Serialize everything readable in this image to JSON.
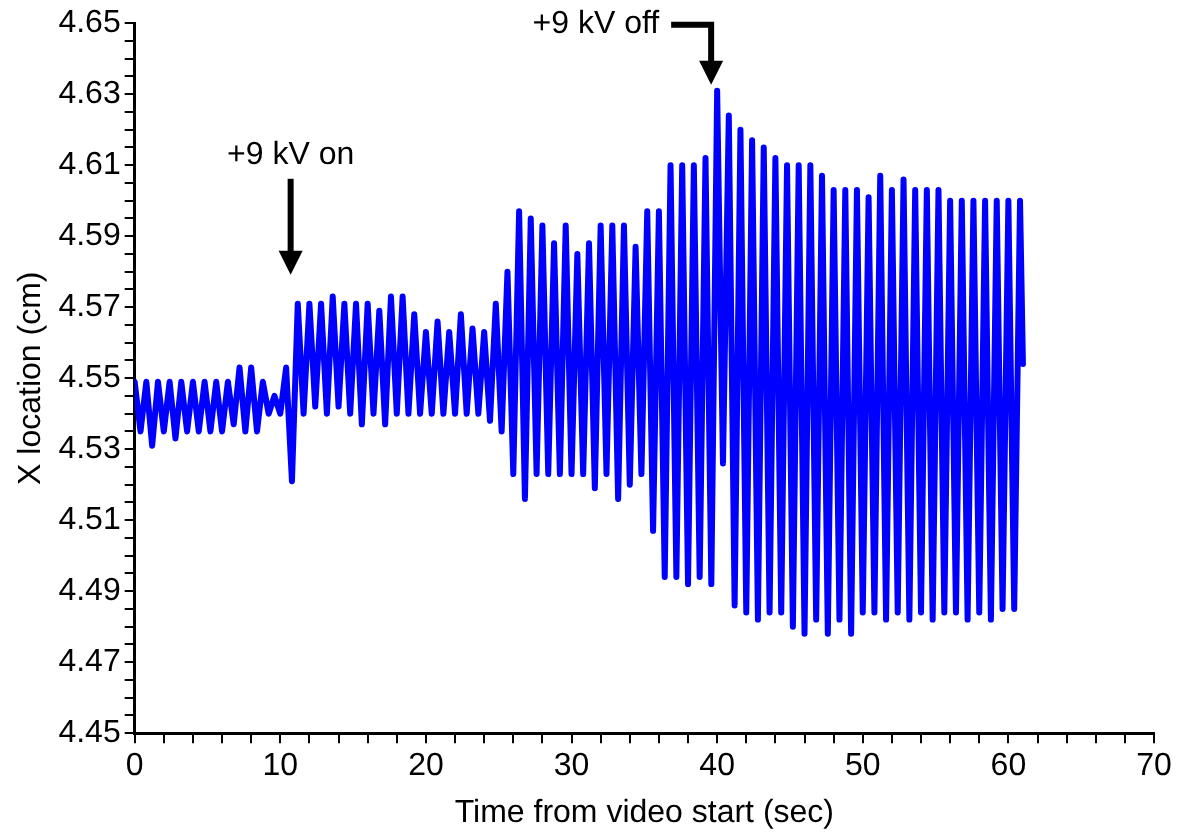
{
  "chart_data": {
    "type": "line",
    "xlabel": "Time from video start (sec)",
    "ylabel": "X location (cm)",
    "xlim": [
      0,
      70
    ],
    "ylim": [
      4.45,
      4.65
    ],
    "xticks": [
      0,
      {
        "value": 2,
        "label": null
      },
      {
        "value": 4,
        "label": null
      },
      {
        "value": 6,
        "label": null
      },
      {
        "value": 8,
        "label": null
      },
      10,
      {
        "value": 12,
        "label": null
      },
      {
        "value": 14,
        "label": null
      },
      {
        "value": 16,
        "label": null
      },
      {
        "value": 18,
        "label": null
      },
      20,
      {
        "value": 22,
        "label": null
      },
      {
        "value": 24,
        "label": null
      },
      {
        "value": 26,
        "label": null
      },
      {
        "value": 28,
        "label": null
      },
      30,
      {
        "value": 32,
        "label": null
      },
      {
        "value": 34,
        "label": null
      },
      {
        "value": 36,
        "label": null
      },
      {
        "value": 38,
        "label": null
      },
      40,
      {
        "value": 42,
        "label": null
      },
      {
        "value": 44,
        "label": null
      },
      {
        "value": 46,
        "label": null
      },
      {
        "value": 48,
        "label": null
      },
      50,
      {
        "value": 52,
        "label": null
      },
      {
        "value": 54,
        "label": null
      },
      {
        "value": 56,
        "label": null
      },
      {
        "value": 58,
        "label": null
      },
      60,
      {
        "value": 62,
        "label": null
      },
      {
        "value": 64,
        "label": null
      },
      {
        "value": 66,
        "label": null
      },
      {
        "value": 68,
        "label": null
      },
      70
    ],
    "yticks": [
      4.45,
      {
        "value": 4.455,
        "label": null
      },
      {
        "value": 4.46,
        "label": null
      },
      {
        "value": 4.465,
        "label": null
      },
      4.47,
      {
        "value": 4.475,
        "label": null
      },
      {
        "value": 4.48,
        "label": null
      },
      {
        "value": 4.485,
        "label": null
      },
      4.49,
      {
        "value": 4.495,
        "label": null
      },
      {
        "value": 4.5,
        "label": null
      },
      {
        "value": 4.505,
        "label": null
      },
      4.51,
      {
        "value": 4.515,
        "label": null
      },
      {
        "value": 4.52,
        "label": null
      },
      {
        "value": 4.525,
        "label": null
      },
      4.53,
      {
        "value": 4.535,
        "label": null
      },
      {
        "value": 4.54,
        "label": null
      },
      {
        "value": 4.545,
        "label": null
      },
      4.55,
      {
        "value": 4.555,
        "label": null
      },
      {
        "value": 4.56,
        "label": null
      },
      {
        "value": 4.565,
        "label": null
      },
      4.57,
      {
        "value": 4.575,
        "label": null
      },
      {
        "value": 4.58,
        "label": null
      },
      {
        "value": 4.585,
        "label": null
      },
      4.59,
      {
        "value": 4.595,
        "label": null
      },
      {
        "value": 4.6,
        "label": null
      },
      {
        "value": 4.605,
        "label": null
      },
      4.61,
      {
        "value": 4.615,
        "label": null
      },
      {
        "value": 4.62,
        "label": null
      },
      {
        "value": 4.625,
        "label": null
      },
      4.63,
      {
        "value": 4.635,
        "label": null
      },
      {
        "value": 4.64,
        "label": null
      },
      {
        "value": 4.645,
        "label": null
      },
      4.65
    ],
    "marker": "none",
    "annotations": [
      "+9 kV on",
      {
        "text": "+9 kV off",
        "x": 40,
        "y": 4.631
      }
    ],
    "x": [
      0,
      0.4,
      0.8,
      1.2,
      1.6,
      2,
      2.4,
      2.8,
      3.2,
      3.6,
      4,
      4.4,
      4.8,
      5.2,
      5.6,
      6,
      6.4,
      6.8,
      7.2,
      7.6,
      8,
      8.4,
      8.8,
      9.2,
      9.6,
      10,
      10.4,
      10.8,
      11.2,
      11.6,
      12,
      12.4,
      12.8,
      13.2,
      13.6,
      14,
      14.4,
      14.8,
      15.2,
      15.6,
      16,
      16.4,
      16.8,
      17.2,
      17.6,
      18,
      18.4,
      18.8,
      19.2,
      19.6,
      20,
      20.4,
      20.8,
      21.2,
      21.6,
      22,
      22.4,
      22.8,
      23.2,
      23.6,
      24,
      24.4,
      24.8,
      25.2,
      25.6,
      26,
      26.4,
      26.8,
      27.2,
      27.6,
      28,
      28.4,
      28.8,
      29.2,
      29.6,
      30,
      30.4,
      30.8,
      31.2,
      31.6,
      32,
      32.4,
      32.8,
      33.2,
      33.6,
      34,
      34.4,
      34.8,
      35.2,
      35.6,
      36,
      36.4,
      36.8,
      37.2,
      37.6,
      38,
      38.4,
      38.8,
      39.2,
      39.6,
      40,
      40.4,
      40.8,
      41.2,
      41.6,
      42,
      42.4,
      42.8,
      43.2,
      43.6,
      44,
      44.4,
      44.8,
      45.2,
      45.6,
      46,
      46.4,
      46.8,
      47.2,
      47.6,
      48,
      48.4,
      48.8,
      49.2,
      49.6,
      50,
      50.4,
      50.8,
      51.2,
      51.6,
      52,
      52.4,
      52.8,
      53.2,
      53.6,
      54,
      54.4,
      54.8,
      55.2,
      55.6,
      56,
      56.4,
      56.8,
      57.2,
      57.6,
      58,
      58.4,
      58.8,
      59.2,
      59.6,
      60,
      60.4,
      60.8,
      61
    ],
    "series": [
      {
        "color": "#0000ff",
        "values": [
          4.549,
          4.535,
          4.549,
          4.531,
          4.549,
          4.535,
          4.549,
          4.533,
          4.549,
          4.535,
          4.549,
          4.535,
          4.549,
          4.535,
          4.549,
          4.535,
          4.549,
          4.537,
          4.553,
          4.535,
          4.553,
          4.535,
          4.549,
          4.54,
          4.545,
          4.54,
          4.553,
          4.521,
          4.571,
          4.54,
          4.571,
          4.542,
          4.571,
          4.54,
          4.573,
          4.542,
          4.571,
          4.54,
          4.571,
          4.537,
          4.571,
          4.54,
          4.569,
          4.537,
          4.573,
          4.54,
          4.573,
          4.54,
          4.568,
          4.54,
          4.563,
          4.54,
          4.566,
          4.54,
          4.563,
          4.54,
          4.568,
          4.54,
          4.564,
          4.54,
          4.563,
          4.538,
          4.571,
          4.535,
          4.58,
          4.523,
          4.597,
          4.516,
          4.595,
          4.523,
          4.593,
          4.523,
          4.588,
          4.523,
          4.593,
          4.523,
          4.585,
          4.523,
          4.588,
          4.519,
          4.593,
          4.523,
          4.593,
          4.516,
          4.593,
          4.52,
          4.587,
          4.523,
          4.597,
          4.507,
          4.597,
          4.494,
          4.61,
          4.494,
          4.61,
          4.492,
          4.61,
          4.494,
          4.612,
          4.492,
          4.631,
          4.526,
          4.624,
          4.486,
          4.62,
          4.484,
          4.617,
          4.482,
          4.615,
          4.484,
          4.612,
          4.484,
          4.61,
          4.48,
          4.61,
          4.478,
          4.61,
          4.482,
          4.607,
          4.478,
          4.603,
          4.482,
          4.603,
          4.478,
          4.603,
          4.484,
          4.601,
          4.484,
          4.607,
          4.482,
          4.603,
          4.484,
          4.606,
          4.482,
          4.603,
          4.484,
          4.603,
          4.482,
          4.603,
          4.484,
          4.6,
          4.484,
          4.6,
          4.482,
          4.6,
          4.484,
          4.6,
          4.482,
          4.6,
          4.485,
          4.6,
          4.485,
          4.6,
          4.554
        ]
      }
    ]
  }
}
